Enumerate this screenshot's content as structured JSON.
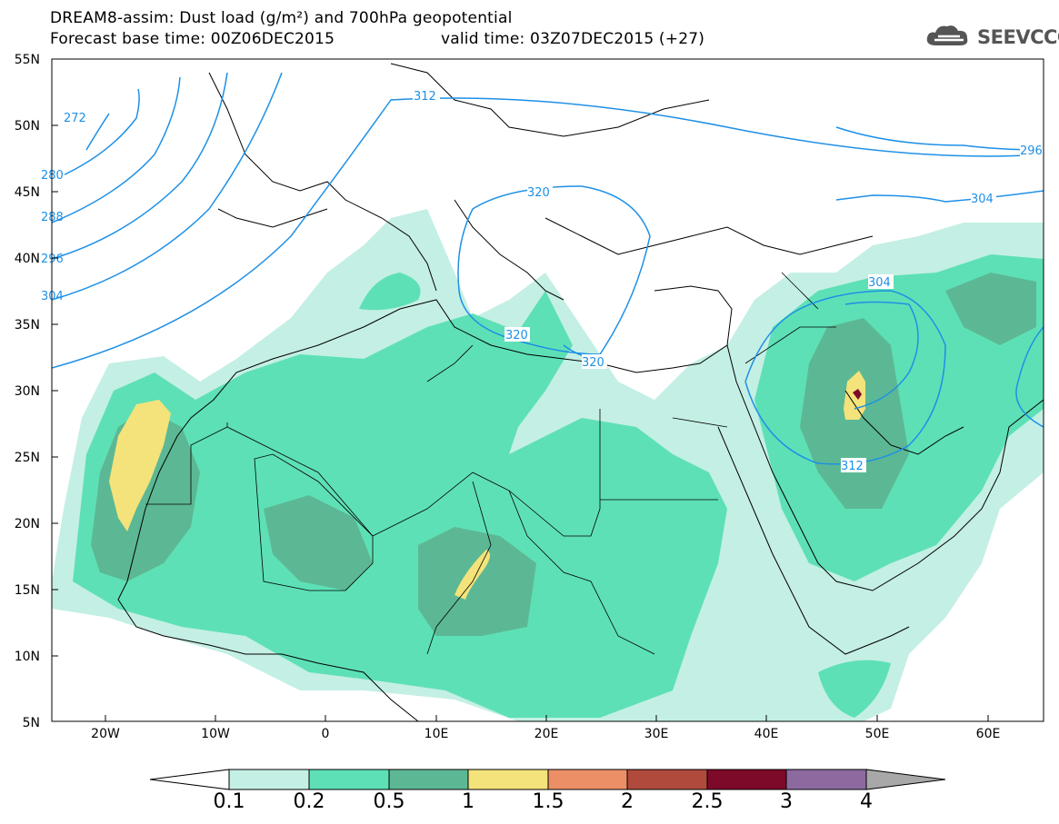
{
  "header": {
    "line1": "DREAM8-assim: Dust load (g/m²) and 700hPa geopotential",
    "line2_left": "Forecast base time: 00Z06DEC2015",
    "line2_right": "valid time: 03Z07DEC2015 (+27)",
    "logo_text": "SEEVCCC"
  },
  "map": {
    "lat_labels": [
      "55N",
      "50N",
      "45N",
      "40N",
      "35N",
      "30N",
      "25N",
      "20N",
      "15N",
      "10N",
      "5N"
    ],
    "lon_labels": [
      "20W",
      "10W",
      "0",
      "10E",
      "20E",
      "30E",
      "40E",
      "50E",
      "60E"
    ],
    "contour_labels": [
      {
        "text": "272",
        "id": "c272"
      },
      {
        "text": "280",
        "id": "c280"
      },
      {
        "text": "288",
        "id": "c288"
      },
      {
        "text": "296",
        "id": "c296a"
      },
      {
        "text": "304",
        "id": "c304a"
      },
      {
        "text": "312",
        "id": "c312a"
      },
      {
        "text": "320",
        "id": "c320a"
      },
      {
        "text": "320",
        "id": "c320b"
      },
      {
        "text": "320",
        "id": "c320c"
      },
      {
        "text": "304",
        "id": "c304b"
      },
      {
        "text": "312",
        "id": "c312b"
      },
      {
        "text": "296",
        "id": "c296b"
      },
      {
        "text": "304",
        "id": "c304c"
      }
    ],
    "contour_color": "#1e90e6"
  },
  "colorbar": {
    "ticks": [
      "0.1",
      "0.2",
      "0.5",
      "1",
      "1.5",
      "2",
      "2.5",
      "3",
      "4"
    ],
    "colors": [
      "#c4efe4",
      "#5ee0b6",
      "#5cb894",
      "#f4e37a",
      "#ec8f66",
      "#b04a3c",
      "#7e0a2a",
      "#8c6aa0",
      "#a8a8a8"
    ],
    "under_color": "#ffffff"
  }
}
